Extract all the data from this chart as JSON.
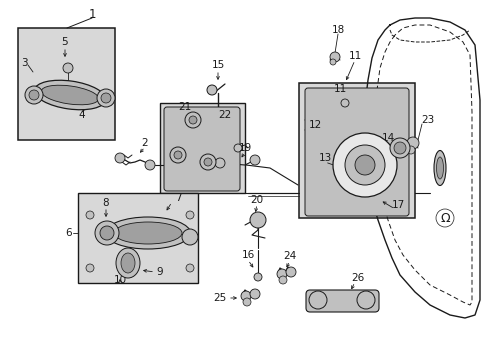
{
  "bg_color": "#ffffff",
  "lc": "#1a1a1a",
  "figsize": [
    4.89,
    3.6
  ],
  "dpi": 100,
  "gray_box": "#d8d8d8",
  "gray_mid": "#c0c0c0",
  "gray_dark": "#a0a0a0",
  "gray_light": "#e8e8e8"
}
